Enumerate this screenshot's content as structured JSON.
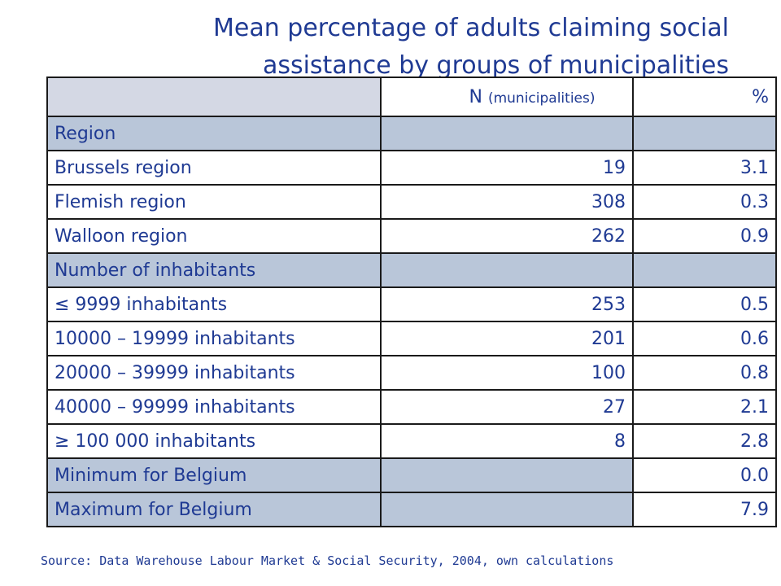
{
  "title_line1": "Mean percentage of adults claiming social",
  "title_line2": "assistance by groups of municipalities",
  "table": {
    "header": {
      "c1_main": "N",
      "c1_sub": "(municipalities)",
      "c2": "%"
    },
    "rows": [
      {
        "label": "Region",
        "n": "",
        "pct": ""
      },
      {
        "label": "Brussels region",
        "n": "19",
        "pct": "3.1"
      },
      {
        "label": "Flemish region",
        "n": "308",
        "pct": "0.3"
      },
      {
        "label": "Walloon region",
        "n": "262",
        "pct": "0.9"
      },
      {
        "label": "Number of inhabitants",
        "n": "",
        "pct": ""
      },
      {
        "label": "≤ 9999 inhabitants",
        "n": "253",
        "pct": "0.5"
      },
      {
        "label": "10000 – 19999 inhabitants",
        "n": "201",
        "pct": "0.6"
      },
      {
        "label": "20000 – 39999 inhabitants",
        "n": "100",
        "pct": "0.8"
      },
      {
        "label": "40000 – 99999 inhabitants",
        "n": "27",
        "pct": "2.1"
      },
      {
        "label": "≥ 100 000 inhabitants",
        "n": "8",
        "pct": "2.8"
      },
      {
        "label": "Minimum for Belgium",
        "n": "",
        "pct": "0.0"
      },
      {
        "label": "Maximum for Belgium",
        "n": "",
        "pct": "7.9"
      }
    ]
  },
  "source": "Source: Data Warehouse Labour Market & Social Security, 2004, own calculations",
  "colors": {
    "text": "#1f3a93",
    "group_fill": "#b9c6d9",
    "header_fill": "#d4d8e4",
    "border": "#1a1a1a"
  }
}
